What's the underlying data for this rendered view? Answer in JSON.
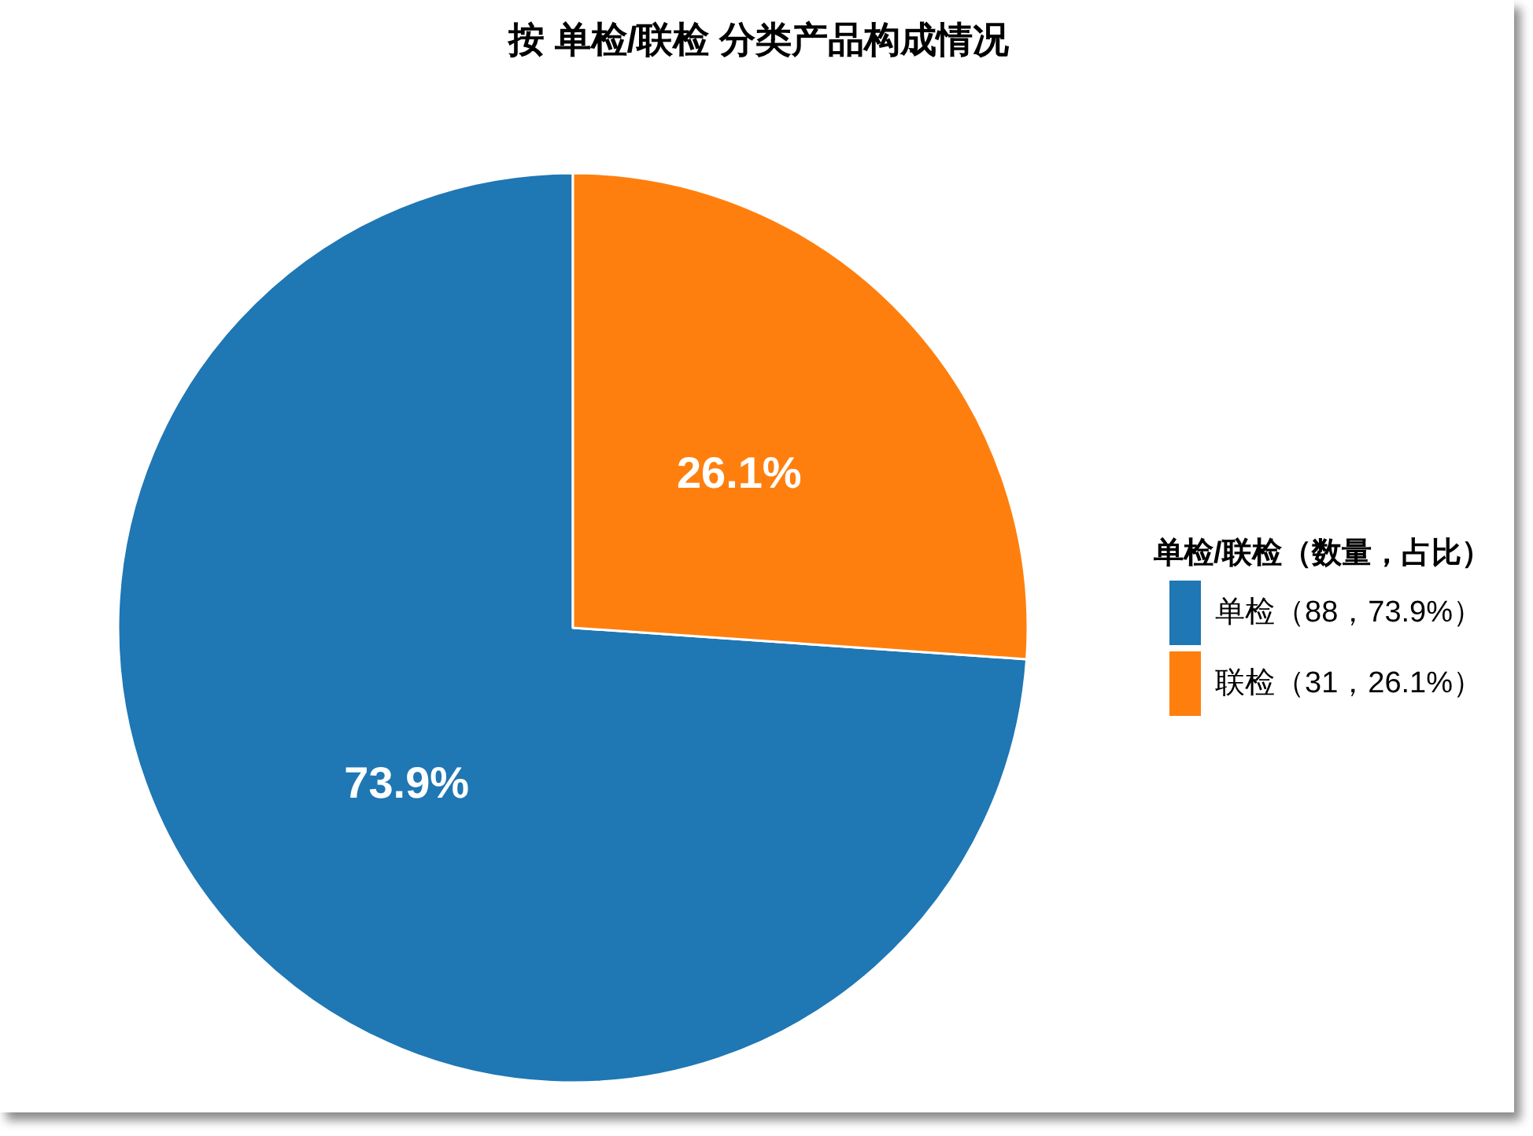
{
  "chart_data": {
    "type": "pie",
    "title": "按 单检/联检 分类产品构成情况",
    "legend_title": "单检/联检（数量，占比）",
    "categories": [
      "单检（88，73.9%）",
      "联检（31，26.1%）"
    ],
    "values": [
      73.9,
      26.1
    ],
    "colors": [
      "#1f77b4",
      "#ff7f0e"
    ],
    "value_labels": [
      "73.9%",
      "26.1%"
    ],
    "legend": "right"
  }
}
